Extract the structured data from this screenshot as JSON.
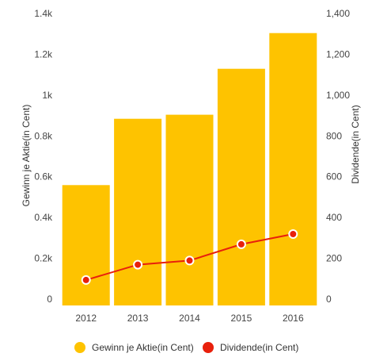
{
  "chart_data": {
    "type": "bar",
    "categories": [
      "2012",
      "2013",
      "2014",
      "2015",
      "2016"
    ],
    "series": [
      {
        "name": "Gewinn je Aktie(in Cent)",
        "type": "bar",
        "axis": "left",
        "color": "#fec300",
        "values": [
          590,
          915,
          935,
          1160,
          1335
        ]
      },
      {
        "name": "Dividende(in Cent)",
        "type": "line",
        "axis": "right",
        "color": "#e8200c",
        "values": [
          125,
          200,
          220,
          300,
          350
        ]
      }
    ],
    "left_axis": {
      "label": "Gewinn je Aktie(in Cent)",
      "ylim": [
        0,
        1400
      ],
      "ticks": [
        0,
        200,
        400,
        600,
        800,
        1000,
        1200,
        1400
      ],
      "tick_labels": [
        "0",
        "0.2k",
        "0.4k",
        "0.6k",
        "0.8k",
        "1k",
        "1.2k",
        "1.4k"
      ]
    },
    "right_axis": {
      "label": "Dividende(in Cent)",
      "ylim": [
        0,
        1400
      ],
      "ticks": [
        0,
        200,
        400,
        600,
        800,
        1000,
        1200,
        1400
      ],
      "tick_labels": [
        "0",
        "200",
        "400",
        "600",
        "800",
        "1,000",
        "1,200",
        "1,400"
      ]
    },
    "grid": false,
    "legend_position": "bottom-center"
  }
}
